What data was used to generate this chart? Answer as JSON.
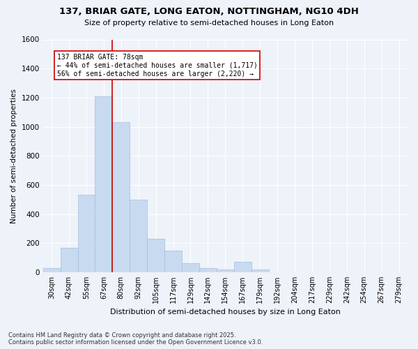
{
  "title_line1": "137, BRIAR GATE, LONG EATON, NOTTINGHAM, NG10 4DH",
  "title_line2": "Size of property relative to semi-detached houses in Long Eaton",
  "xlabel": "Distribution of semi-detached houses by size in Long Eaton",
  "ylabel": "Number of semi-detached properties",
  "categories": [
    "30sqm",
    "42sqm",
    "55sqm",
    "67sqm",
    "80sqm",
    "92sqm",
    "105sqm",
    "117sqm",
    "129sqm",
    "142sqm",
    "154sqm",
    "167sqm",
    "179sqm",
    "192sqm",
    "204sqm",
    "217sqm",
    "229sqm",
    "242sqm",
    "254sqm",
    "267sqm",
    "279sqm"
  ],
  "values": [
    30,
    170,
    530,
    1210,
    1030,
    500,
    230,
    150,
    60,
    30,
    20,
    70,
    20,
    0,
    0,
    0,
    0,
    0,
    0,
    0,
    0
  ],
  "bar_color": "#c8daf0",
  "bar_edge_color": "#a8bedd",
  "annotation_text_line1": "137 BRIAR GATE: 78sqm",
  "annotation_text_line2": "← 44% of semi-detached houses are smaller (1,717)",
  "annotation_text_line3": "56% of semi-detached houses are larger (2,220) →",
  "annotation_box_facecolor": "#ffffff",
  "annotation_box_edgecolor": "#cc0000",
  "vline_color": "#cc0000",
  "vline_x": 3.5,
  "background_color": "#eef2f9",
  "grid_color": "#ffffff",
  "ylim": [
    0,
    1600
  ],
  "yticks": [
    0,
    200,
    400,
    600,
    800,
    1000,
    1200,
    1400,
    1600
  ],
  "footer_line1": "Contains HM Land Registry data © Crown copyright and database right 2025.",
  "footer_line2": "Contains public sector information licensed under the Open Government Licence v3.0."
}
